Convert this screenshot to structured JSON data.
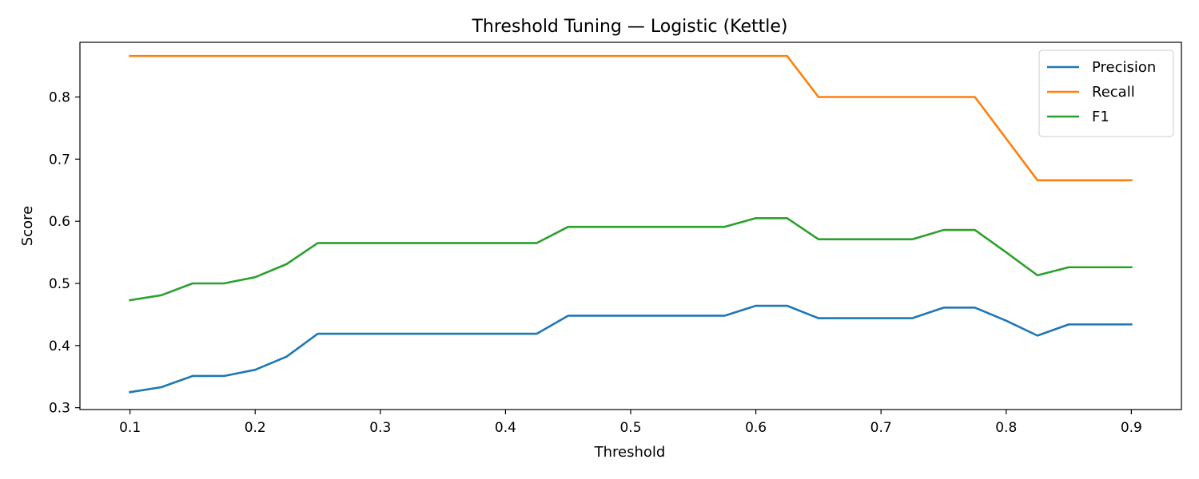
{
  "chart_data": {
    "type": "line",
    "title": "Threshold Tuning — Logistic (Kettle)",
    "xlabel": "Threshold",
    "ylabel": "Score",
    "xlim": [
      0.06,
      0.94
    ],
    "ylim": [
      0.297,
      0.888
    ],
    "xticks": [
      "0.1",
      "0.2",
      "0.3",
      "0.4",
      "0.5",
      "0.6",
      "0.7",
      "0.8",
      "0.9"
    ],
    "yticks": [
      "0.3",
      "0.4",
      "0.5",
      "0.6",
      "0.7",
      "0.8"
    ],
    "grid": false,
    "legend_position": "top-right",
    "x": [
      0.1,
      0.125,
      0.15,
      0.175,
      0.2,
      0.225,
      0.25,
      0.275,
      0.3,
      0.325,
      0.35,
      0.375,
      0.4,
      0.425,
      0.45,
      0.475,
      0.5,
      0.525,
      0.55,
      0.575,
      0.6,
      0.625,
      0.65,
      0.675,
      0.7,
      0.725,
      0.75,
      0.775,
      0.8,
      0.825,
      0.85,
      0.875,
      0.9
    ],
    "series": [
      {
        "name": "Precision",
        "color": "#1f77b4",
        "values": [
          0.325,
          0.333,
          0.351,
          0.351,
          0.361,
          0.382,
          0.419,
          0.419,
          0.419,
          0.419,
          0.419,
          0.419,
          0.419,
          0.419,
          0.448,
          0.448,
          0.448,
          0.448,
          0.448,
          0.448,
          0.464,
          0.464,
          0.444,
          0.444,
          0.444,
          0.444,
          0.461,
          0.461,
          0.44,
          0.416,
          0.434,
          0.434,
          0.434
        ]
      },
      {
        "name": "Recall",
        "color": "#ff7f0e",
        "values": [
          0.866,
          0.866,
          0.866,
          0.866,
          0.866,
          0.866,
          0.866,
          0.866,
          0.866,
          0.866,
          0.866,
          0.866,
          0.866,
          0.866,
          0.866,
          0.866,
          0.866,
          0.866,
          0.866,
          0.866,
          0.866,
          0.866,
          0.8,
          0.8,
          0.8,
          0.8,
          0.8,
          0.8,
          0.733,
          0.666,
          0.666,
          0.666,
          0.666
        ]
      },
      {
        "name": "F1",
        "color": "#2ca02c",
        "values": [
          0.473,
          0.481,
          0.5,
          0.5,
          0.51,
          0.531,
          0.565,
          0.565,
          0.565,
          0.565,
          0.565,
          0.565,
          0.565,
          0.565,
          0.591,
          0.591,
          0.591,
          0.591,
          0.591,
          0.591,
          0.605,
          0.605,
          0.571,
          0.571,
          0.571,
          0.571,
          0.586,
          0.586,
          0.55,
          0.513,
          0.526,
          0.526,
          0.526
        ]
      }
    ]
  }
}
